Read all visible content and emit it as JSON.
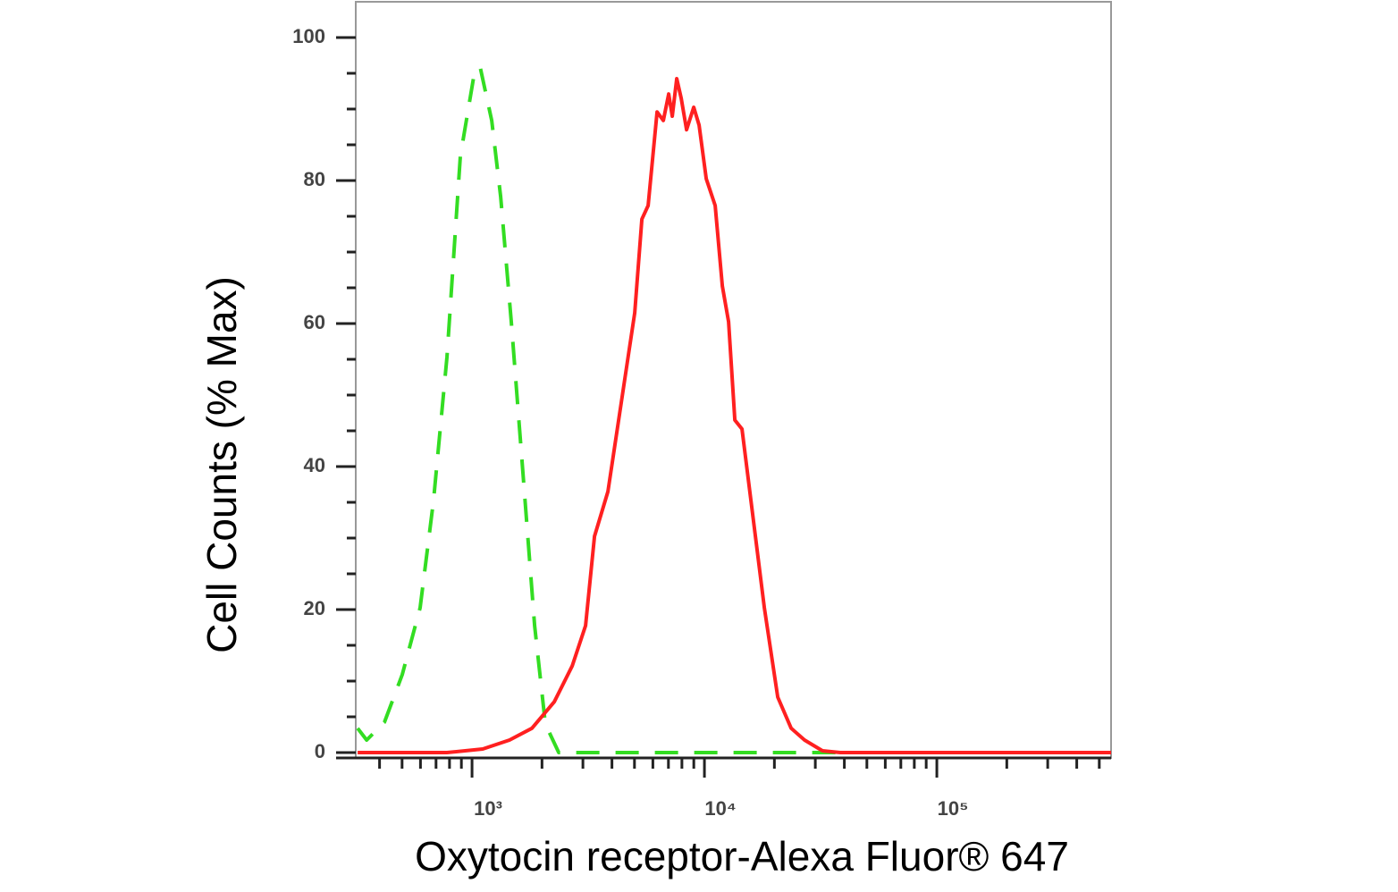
{
  "chart_data": {
    "type": "line",
    "xlabel": "Oxytocin receptor-Alexa Fluor® 647",
    "ylabel": "Cell Counts (% Max)",
    "xscale": "log",
    "xlim": [
      316,
      562000
    ],
    "ylim": [
      -0.75,
      105
    ],
    "xticks": [
      {
        "value": 1000,
        "label": "10³"
      },
      {
        "value": 10000,
        "label": "10⁴"
      },
      {
        "value": 100000,
        "label": "10⁵"
      }
    ],
    "xminorticks": [
      400,
      500,
      600,
      700,
      800,
      900,
      2000,
      3000,
      4000,
      5000,
      6000,
      7000,
      8000,
      9000,
      20000,
      30000,
      40000,
      50000,
      60000,
      70000,
      80000,
      90000,
      200000,
      300000,
      400000,
      500000
    ],
    "yticks": [
      0,
      20,
      40,
      60,
      80,
      100
    ],
    "yminorticks": [
      5,
      10,
      15,
      25,
      30,
      35,
      45,
      50,
      55,
      65,
      70,
      75,
      85,
      90,
      95
    ],
    "series": [
      {
        "color": "#33dd22",
        "dashed": true,
        "x": [
          322,
          352,
          420,
          501,
          598,
          683,
          780,
          891,
          1018,
          1083,
          1215,
          1328,
          1476,
          1657,
          1859,
          2067,
          2361,
          4587,
          26970,
          562000
        ],
        "values": [
          3.4,
          1.75,
          4.25,
          10.9,
          20.25,
          35.25,
          55.25,
          83.4,
          94.6,
          95.9,
          88.4,
          77.75,
          60.25,
          39,
          17.75,
          4,
          0,
          0,
          0,
          0
        ]
      },
      {
        "color": "#ff2020",
        "dashed": false,
        "x": [
          322,
          501,
          780,
          1112,
          1450,
          1810,
          2259,
          2697,
          3080,
          3365,
          3842,
          4388,
          5012,
          5381,
          5725,
          6255,
          6656,
          7020,
          7271,
          7600,
          7943,
          8378,
          8990,
          9482,
          10178,
          11123,
          11938,
          12701,
          13515,
          14505,
          15849,
          18107,
          20673,
          23614,
          26970,
          32190,
          38420,
          562000
        ],
        "values": [
          0,
          0,
          0,
          0.5,
          1.75,
          3.4,
          7.1,
          12.1,
          17.75,
          30.25,
          36.5,
          49,
          61.5,
          74.6,
          76.5,
          89.6,
          88.4,
          92.1,
          89,
          94.25,
          91.5,
          87.1,
          90.25,
          87.75,
          80.25,
          76.5,
          65.25,
          60.25,
          46.5,
          45.25,
          35.25,
          20.25,
          7.75,
          3.4,
          1.75,
          0.25,
          0,
          0
        ]
      }
    ]
  }
}
